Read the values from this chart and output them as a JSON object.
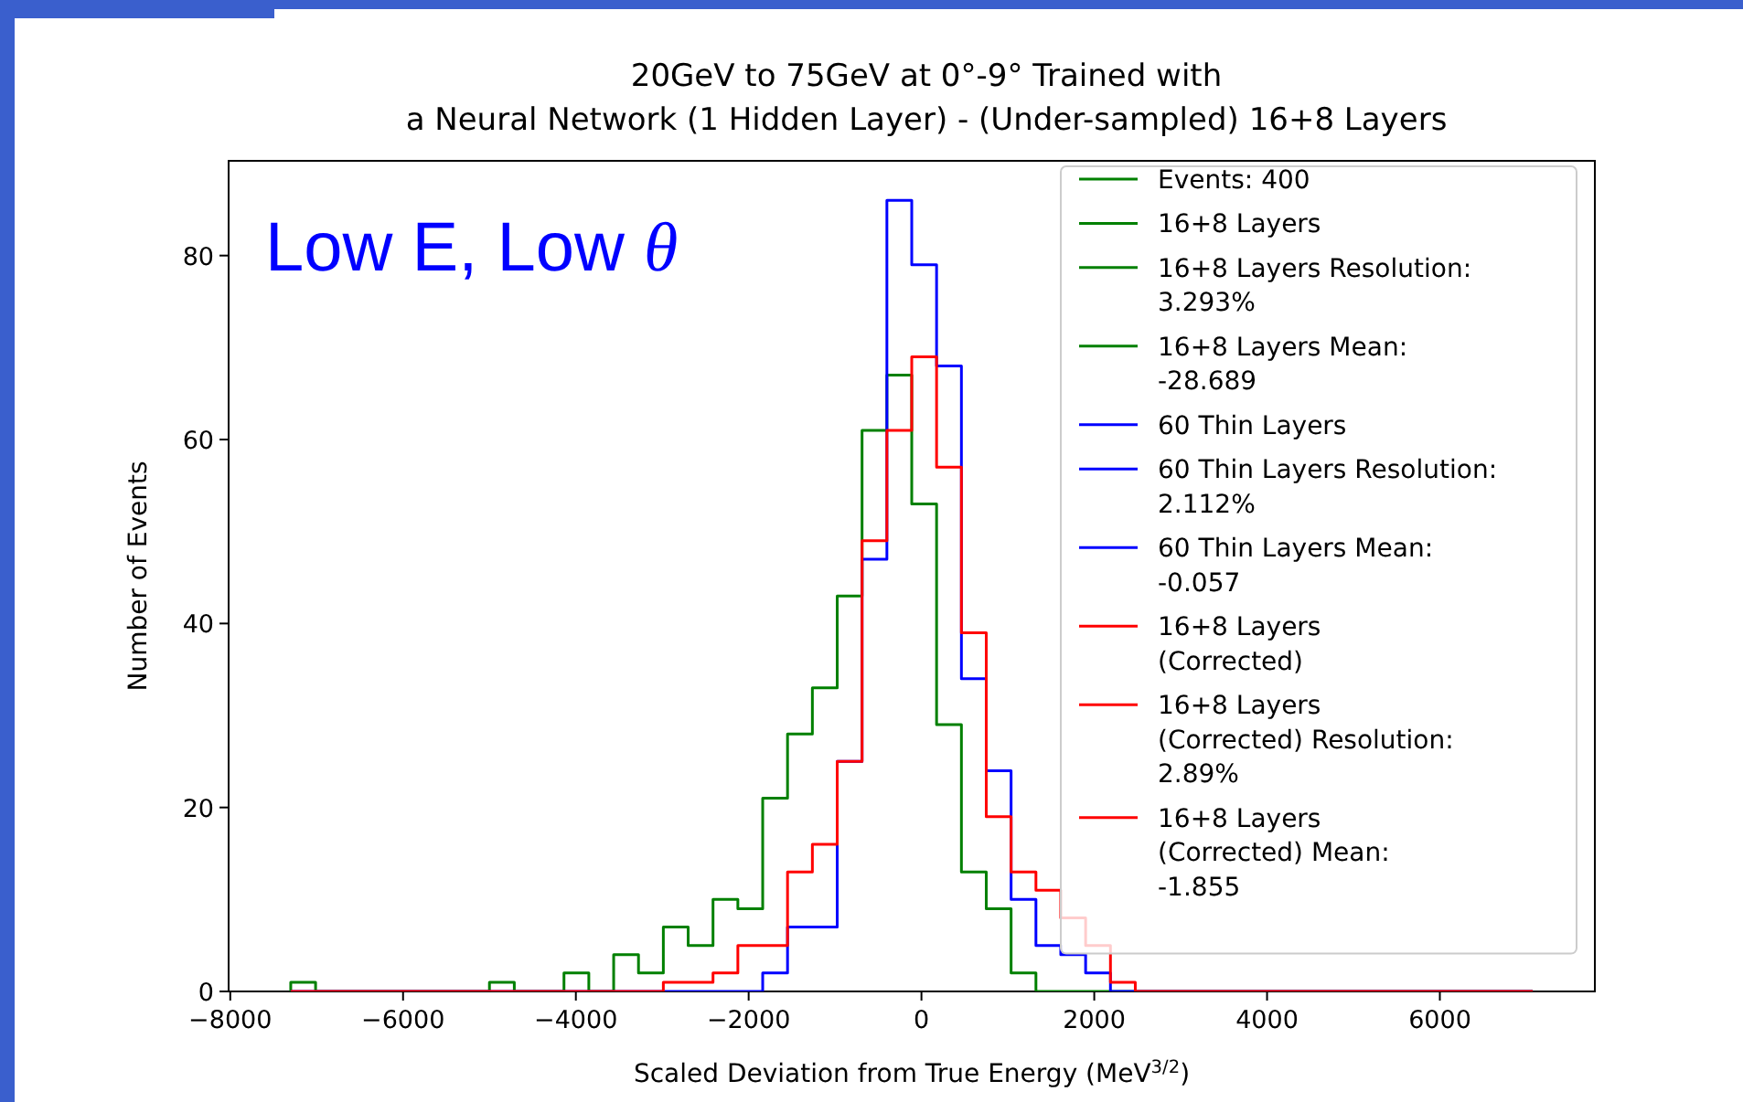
{
  "chart_data": {
    "type": "histogram",
    "title": "20GeV to 75GeV at 0°-9° Trained with\na Neural Network (1 Hidden Layer) - (Under-sampled) 16+8 Layers",
    "xlabel": "Scaled Deviation from True Energy (MeV$^{3/2}$)",
    "ylabel": "Number of Events",
    "bins": [
      -7300,
      -7012.5,
      -6725,
      -6437.5,
      -6150,
      -5862.5,
      -5575,
      -5287.5,
      -5000,
      -4712.5,
      -4425,
      -4137.5,
      -3850,
      -3562.5,
      -3275,
      -2987.5,
      -2700,
      -2412.5,
      -2125,
      -1837.5,
      -1550,
      -1262.5,
      -975,
      -687.5,
      -400,
      -112.5,
      175,
      462.5,
      750,
      1037.5,
      1325,
      1612.5,
      1900,
      2187.5,
      2475,
      2762.5,
      3050,
      3337.5,
      3625,
      3912.5,
      4200,
      4487.5,
      4775,
      5062.5,
      5350,
      5637.5,
      5925,
      6212.5,
      6500,
      6787.5,
      7075
    ],
    "series": [
      {
        "name": "16+8 Layers",
        "color": "#008000",
        "values": [
          1,
          0,
          0,
          0,
          0,
          0,
          0,
          0,
          1,
          0,
          0,
          2,
          0,
          4,
          2,
          7,
          5,
          10,
          9,
          21,
          28,
          33,
          43,
          61,
          67,
          53,
          29,
          13,
          9,
          2,
          0,
          0,
          0,
          0,
          0,
          0,
          0,
          0,
          0,
          0,
          0,
          0,
          0,
          0,
          0,
          0,
          0,
          0,
          0,
          0
        ]
      },
      {
        "name": "60 Thin Layers",
        "color": "#0000ff",
        "values": [
          0,
          0,
          0,
          0,
          0,
          0,
          0,
          0,
          0,
          0,
          0,
          0,
          0,
          0,
          0,
          0,
          0,
          0,
          0,
          2,
          7,
          7,
          25,
          47,
          86,
          79,
          68,
          34,
          24,
          10,
          5,
          4,
          2,
          0,
          0,
          0,
          0,
          0,
          0,
          0,
          0,
          0,
          0,
          0,
          0,
          0,
          0,
          0,
          0,
          0
        ]
      },
      {
        "name": "16+8 Layers\n(Corrected)",
        "color": "#ff0000",
        "values": [
          0,
          0,
          0,
          0,
          0,
          0,
          0,
          0,
          0,
          0,
          0,
          0,
          0,
          0,
          0,
          1,
          1,
          2,
          5,
          5,
          13,
          16,
          25,
          49,
          61,
          69,
          57,
          39,
          19,
          13,
          11,
          8,
          5,
          1,
          0,
          0,
          0,
          0,
          0,
          0,
          0,
          0,
          0,
          0,
          0,
          0,
          0,
          0,
          0,
          0
        ]
      }
    ],
    "annotations": [
      "Events: 400",
      "16+8 Layers Resolution:\n3.293%",
      "16+8 Layers Mean:\n-28.689",
      "60 Thin Layers Resolution:\n2.112%",
      "60 Thin Layers Mean:\n-0.057",
      "16+8 Layers\n(Corrected) Resolution:\n2.89%",
      "16+8 Layers\n(Corrected) Mean:\n-1.855",
      "Low E, Low θ"
    ],
    "xlim": [
      -8019,
      7794
    ],
    "xticks": [
      {
        "value": -8000,
        "label": "−8000"
      },
      {
        "value": -6000,
        "label": "−6000"
      },
      {
        "value": -4000,
        "label": "−4000"
      },
      {
        "value": -2000,
        "label": "−2000"
      },
      0,
      2000,
      4000,
      6000
    ],
    "ylim": [
      0,
      90.3
    ],
    "yticks": [
      0,
      20,
      40,
      60,
      80
    ],
    "grid": false,
    "legend": "top right"
  }
}
